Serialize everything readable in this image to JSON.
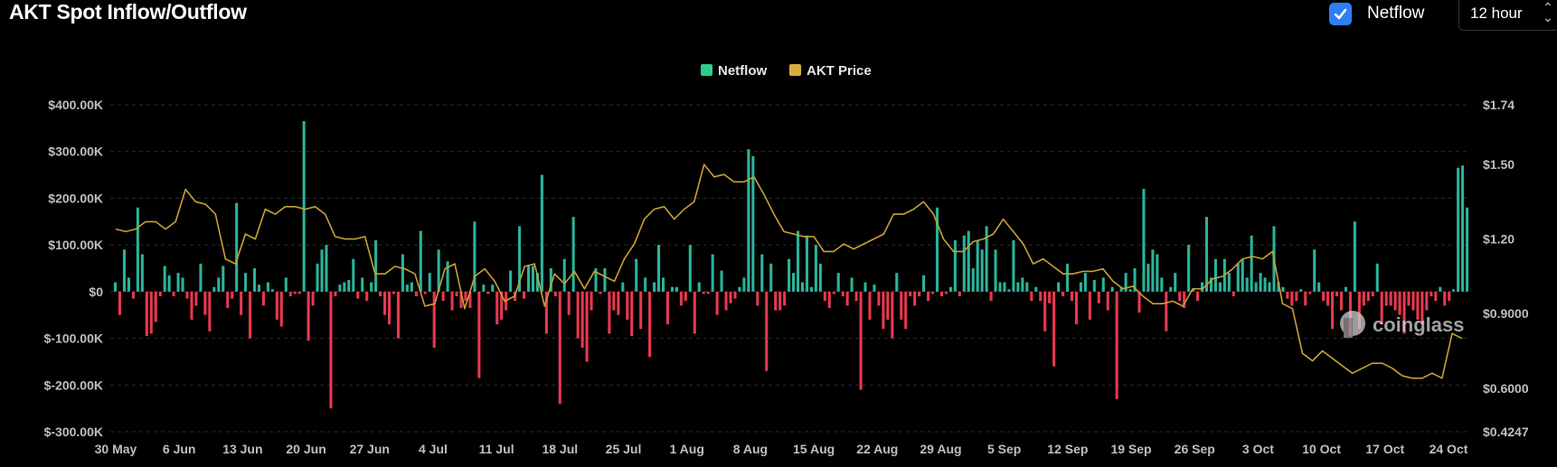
{
  "header": {
    "title": "AKT Spot Inflow/Outflow",
    "netflow_checkbox_label": "Netflow",
    "netflow_checked": true,
    "interval_select": "12 hour",
    "check_icon": "check-icon",
    "select_icon": "chevron-up-down-icon"
  },
  "watermark": {
    "text": "coinglass",
    "icon": "coinglass-logo-icon"
  },
  "colors": {
    "positive": "#2bb39a",
    "negative": "#e8384f",
    "price": "#c9a133",
    "legend_netflow": "#2ecc8b",
    "legend_price": "#d9ad3c"
  },
  "chart_data": {
    "type": "bar",
    "title": "",
    "legend": {
      "position": "top-center",
      "entries": [
        "Netflow",
        "AKT Price"
      ]
    },
    "grid": true,
    "y_left": {
      "ticks": [
        "$400.00K",
        "$300.00K",
        "$200.00K",
        "$100.00K",
        "$0",
        "$-100.00K",
        "$-200.00K",
        "$-300.00K"
      ],
      "range": [
        -300000,
        400000
      ]
    },
    "y_right": {
      "ticks": [
        "$1.74",
        "$1.50",
        "$1.20",
        "$0.9000",
        "$0.6000",
        "$0.4247"
      ],
      "range": [
        0.4247,
        1.74
      ]
    },
    "x_ticks": [
      "30 May",
      "6 Jun",
      "13 Jun",
      "20 Jun",
      "27 Jun",
      "4 Jul",
      "11 Jul",
      "18 Jul",
      "25 Jul",
      "1 Aug",
      "8 Aug",
      "15 Aug",
      "22 Aug",
      "29 Aug",
      "5 Sep",
      "12 Sep",
      "19 Sep",
      "26 Sep",
      "3 Oct",
      "10 Oct",
      "17 Oct",
      "24 Oct"
    ],
    "series": [
      {
        "name": "Netflow",
        "kind": "bar",
        "unit": "USD",
        "values": [
          20000,
          -50000,
          90000,
          30000,
          -15000,
          180000,
          80000,
          -95000,
          -90000,
          -65000,
          -10000,
          55000,
          35000,
          -10000,
          40000,
          30000,
          -15000,
          -60000,
          -30000,
          60000,
          -50000,
          -85000,
          10000,
          30000,
          55000,
          -35000,
          -15000,
          190000,
          -50000,
          40000,
          -100000,
          50000,
          15000,
          -30000,
          20000,
          5000,
          -60000,
          -75000,
          30000,
          -10000,
          -5000,
          -5000,
          365000,
          -105000,
          -30000,
          60000,
          90000,
          100000,
          -250000,
          -10000,
          15000,
          20000,
          25000,
          70000,
          -15000,
          30000,
          -20000,
          20000,
          110000,
          -10000,
          -50000,
          -70000,
          -5000,
          -100000,
          80000,
          15000,
          20000,
          -10000,
          130000,
          -5000,
          40000,
          -120000,
          90000,
          -20000,
          65000,
          -40000,
          -10000,
          -35000,
          -20000,
          -35000,
          150000,
          -185000,
          15000,
          -5000,
          15000,
          -70000,
          -60000,
          -40000,
          45000,
          -20000,
          140000,
          -15000,
          55000,
          55000,
          40000,
          250000,
          -90000,
          50000,
          -10000,
          -240000,
          70000,
          -50000,
          160000,
          -100000,
          -120000,
          -150000,
          -40000,
          50000,
          -5000,
          50000,
          -90000,
          -40000,
          -50000,
          20000,
          -60000,
          -95000,
          70000,
          -80000,
          30000,
          -140000,
          20000,
          100000,
          30000,
          -70000,
          10000,
          10000,
          -30000,
          -20000,
          100000,
          -90000,
          20000,
          -5000,
          -5000,
          80000,
          -50000,
          45000,
          -40000,
          -25000,
          -15000,
          10000,
          30000,
          305000,
          290000,
          -30000,
          80000,
          -170000,
          60000,
          -40000,
          -40000,
          -30000,
          70000,
          40000,
          130000,
          20000,
          120000,
          10000,
          100000,
          60000,
          -20000,
          -35000,
          -5000,
          40000,
          -10000,
          -30000,
          30000,
          -20000,
          -210000,
          20000,
          -60000,
          15000,
          -30000,
          -80000,
          -60000,
          -100000,
          40000,
          -60000,
          -80000,
          -10000,
          -30000,
          -10000,
          35000,
          -20000,
          -5000,
          180000,
          -10000,
          -5000,
          10000,
          110000,
          -10000,
          120000,
          130000,
          50000,
          110000,
          90000,
          140000,
          -20000,
          90000,
          20000,
          20000,
          5000,
          110000,
          20000,
          30000,
          20000,
          -20000,
          10000,
          -20000,
          -85000,
          -25000,
          -160000,
          20000,
          -10000,
          60000,
          -20000,
          -70000,
          20000,
          40000,
          -60000,
          25000,
          -25000,
          30000,
          -40000,
          10000,
          -230000,
          10000,
          40000,
          5000,
          50000,
          -45000,
          220000,
          60000,
          90000,
          80000,
          30000,
          -85000,
          10000,
          40000,
          -20000,
          -35000,
          100000,
          5000,
          -20000,
          20000,
          160000,
          30000,
          70000,
          20000,
          70000,
          40000,
          -10000,
          60000,
          70000,
          30000,
          120000,
          20000,
          40000,
          30000,
          20000,
          140000,
          20000,
          10000,
          -15000,
          -30000,
          -20000,
          5000,
          -30000,
          -5000,
          90000,
          20000,
          -20000,
          -30000,
          -80000,
          -10000,
          -40000,
          10000,
          -95000,
          150000,
          -80000,
          -30000,
          -20000,
          -10000,
          60000,
          -70000,
          -30000,
          -30000,
          -40000,
          -50000,
          -90000,
          -30000,
          -40000,
          -60000,
          -70000,
          -40000,
          -10000,
          -20000,
          10000,
          -30000,
          -20000,
          5000,
          265000,
          270000,
          180000
        ]
      },
      {
        "name": "AKT Price",
        "kind": "line",
        "unit": "USD",
        "values": [
          1.24,
          1.23,
          1.24,
          1.27,
          1.27,
          1.24,
          1.27,
          1.4,
          1.35,
          1.34,
          1.3,
          1.12,
          1.1,
          1.22,
          1.2,
          1.32,
          1.3,
          1.33,
          1.33,
          1.32,
          1.33,
          1.3,
          1.21,
          1.2,
          1.2,
          1.21,
          1.06,
          1.06,
          1.09,
          1.08,
          1.06,
          0.93,
          0.94,
          1.08,
          1.1,
          0.92,
          1.05,
          1.08,
          1.03,
          0.95,
          0.97,
          1.09,
          1.1,
          0.93,
          1.06,
          1.02,
          1.07,
          1.0,
          1.07,
          1.05,
          1.03,
          1.12,
          1.18,
          1.28,
          1.32,
          1.33,
          1.28,
          1.32,
          1.35,
          1.5,
          1.45,
          1.46,
          1.43,
          1.43,
          1.45,
          1.38,
          1.3,
          1.23,
          1.22,
          1.21,
          1.21,
          1.15,
          1.15,
          1.18,
          1.16,
          1.18,
          1.2,
          1.22,
          1.3,
          1.3,
          1.32,
          1.35,
          1.3,
          1.2,
          1.15,
          1.15,
          1.19,
          1.2,
          1.22,
          1.28,
          1.23,
          1.18,
          1.1,
          1.12,
          1.09,
          1.06,
          1.06,
          1.07,
          1.07,
          1.08,
          1.03,
          1.0,
          1.01,
          0.97,
          0.94,
          0.94,
          0.95,
          0.93,
          1.0,
          1.0,
          1.04,
          1.05,
          1.08,
          1.12,
          1.13,
          1.12,
          1.15,
          0.94,
          0.92,
          0.74,
          0.71,
          0.75,
          0.72,
          0.69,
          0.66,
          0.68,
          0.7,
          0.7,
          0.68,
          0.65,
          0.64,
          0.64,
          0.66,
          0.64,
          0.82,
          0.8
        ]
      }
    ]
  }
}
